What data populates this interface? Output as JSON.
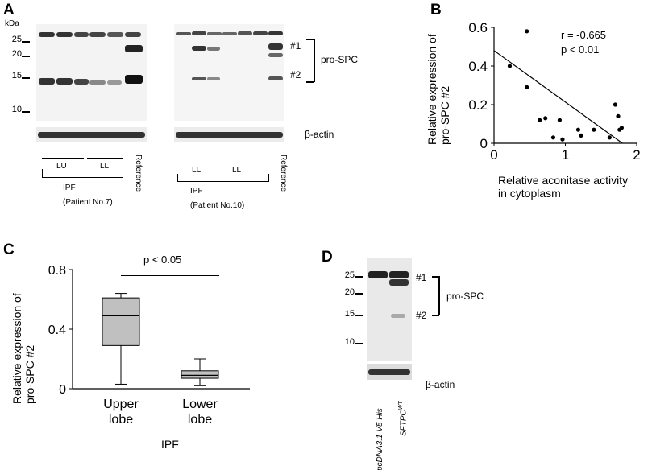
{
  "panels": {
    "A": {
      "letter": "A",
      "kda_label": "kDa",
      "mw_markers": [
        "25",
        "20",
        "15",
        "10"
      ],
      "bands": [
        "#1",
        "#2"
      ],
      "protein": "pro-SPC",
      "loading_control": "β-actin",
      "lane_groups": [
        "LU",
        "LL"
      ],
      "reference": "Reference",
      "left_condition": "IPF",
      "left_patient": "(Patient No.7)",
      "right_condition": "IPF",
      "right_patient": "(Patient No.10)"
    },
    "B": {
      "letter": "B",
      "stat_r": "r = -0.665",
      "stat_p": "p < 0.01"
    },
    "C": {
      "letter": "C",
      "sig": "p < 0.05",
      "group_label": "IPF"
    },
    "D": {
      "letter": "D",
      "mw_markers": [
        "25",
        "20",
        "15",
        "10"
      ],
      "bands": [
        "#1",
        "#2"
      ],
      "protein": "pro-SPC",
      "loading_control": "β-actin",
      "lane1": "pcDNA3.1 V5 His",
      "lane2_main": "SFTPC",
      "lane2_sup": "WT"
    }
  },
  "chart_data": [
    {
      "panel": "B",
      "type": "scatter",
      "title": "",
      "xlabel": "Relative aconitase activity in cytoplasm",
      "xlabel_lines": [
        "Relative aconitase activity",
        "in cytoplasm"
      ],
      "ylabel": "Relative expression of pro-SPC #2",
      "ylabel_lines": [
        "Relative expression of",
        "pro-SPC #2"
      ],
      "xlim": [
        0,
        2
      ],
      "ylim": [
        0,
        0.6
      ],
      "xticks": [
        "0",
        "1",
        "2"
      ],
      "yticks": [
        "0",
        "0.2",
        "0.4",
        "0.6"
      ],
      "points": [
        [
          0.22,
          0.4
        ],
        [
          0.46,
          0.58
        ],
        [
          0.46,
          0.29
        ],
        [
          0.64,
          0.12
        ],
        [
          0.72,
          0.13
        ],
        [
          0.83,
          0.03
        ],
        [
          0.92,
          0.12
        ],
        [
          0.96,
          0.02
        ],
        [
          1.18,
          0.07
        ],
        [
          1.22,
          0.04
        ],
        [
          1.4,
          0.07
        ],
        [
          1.62,
          0.03
        ],
        [
          1.7,
          0.2
        ],
        [
          1.74,
          0.14
        ],
        [
          1.76,
          0.07
        ],
        [
          1.79,
          0.08
        ]
      ],
      "regression": {
        "x": [
          0,
          1.8
        ],
        "y": [
          0.48,
          0.0
        ]
      },
      "grid": false
    },
    {
      "panel": "C",
      "type": "box",
      "title": "",
      "ylabel": "Relative expression of pro-SPC #2",
      "ylabel_lines": [
        "Relative expression of",
        "pro-SPC #2"
      ],
      "ylim": [
        0,
        0.8
      ],
      "yticks": [
        "0",
        "0.4",
        "0.8"
      ],
      "categories": [
        "Upper lobe",
        "Lower lobe"
      ],
      "category_lines": [
        [
          "Upper",
          "lobe"
        ],
        [
          "Lower",
          "lobe"
        ]
      ],
      "boxes": [
        {
          "min": 0.03,
          "q1": 0.29,
          "median": 0.49,
          "q3": 0.61,
          "max": 0.64
        },
        {
          "min": 0.02,
          "q1": 0.07,
          "median": 0.09,
          "q3": 0.12,
          "max": 0.2
        }
      ],
      "box_color": "#c0c0c0",
      "grid": false
    }
  ]
}
